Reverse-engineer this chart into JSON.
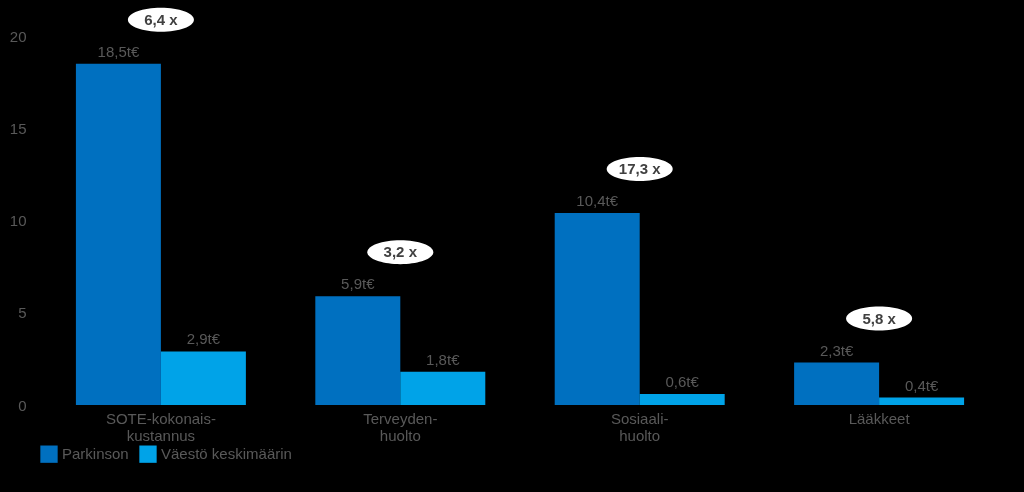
{
  "chart_data": {
    "type": "bar",
    "categories": [
      "SOTE-kokonais-\nkustannus",
      "Terveyden-\nhuolto",
      "Sosiaali-\nhuolto",
      "Lääkkeet"
    ],
    "series": [
      {
        "name": "Parkinson",
        "color": "#0070c0",
        "values": [
          18.5,
          5.9,
          10.4,
          2.3
        ],
        "value_labels": [
          "18,5t€",
          "5,9t€",
          "10,4t€",
          "2,3t€"
        ]
      },
      {
        "name": "Väestö keskimäärin",
        "color": "#00a3e8",
        "values": [
          2.9,
          1.8,
          0.6,
          0.4
        ],
        "value_labels": [
          "2,9t€",
          "1,8t€",
          "0,6t€",
          "0,4t€"
        ]
      }
    ],
    "ylim": [
      0,
      20
    ],
    "yticks": [
      0,
      5,
      10,
      15,
      20
    ],
    "grid": false,
    "legend": "bottom",
    "annotations": [
      "6,4 x",
      "3,2 x",
      "17,3 x",
      "5,8 x"
    ]
  }
}
